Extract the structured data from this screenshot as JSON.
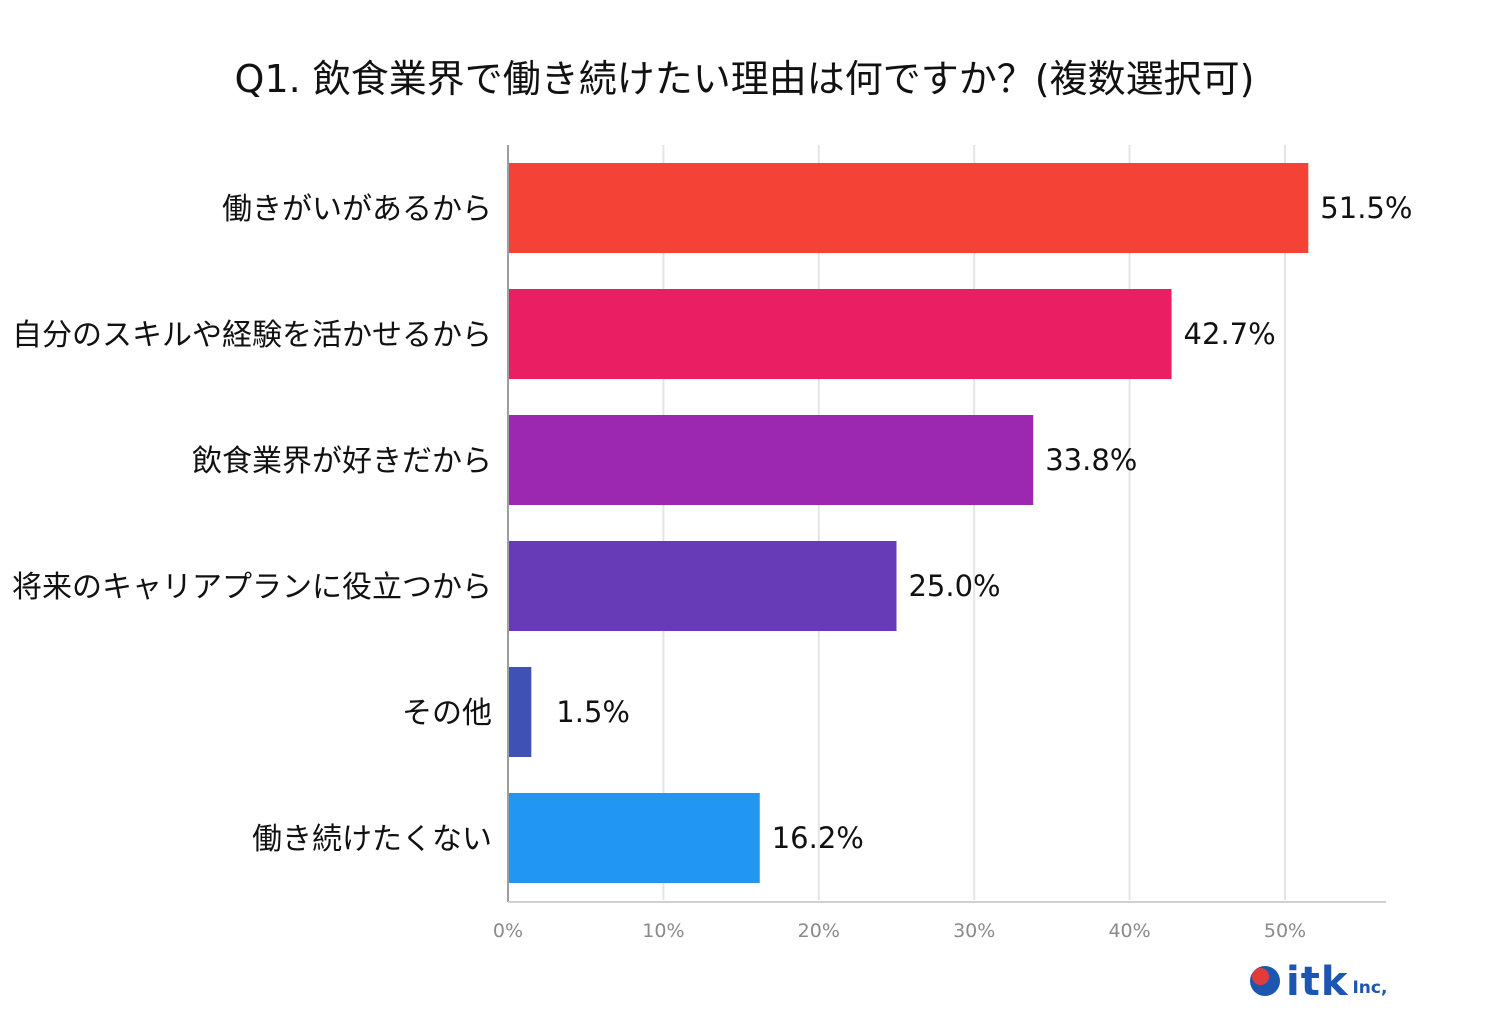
{
  "chart_data": {
    "type": "bar",
    "orientation": "horizontal",
    "title": "Q1. 飲食業界で働き続けたい理由は何ですか？(複数選択可)",
    "categories": [
      "働きがいがあるから",
      "自分のスキルや経験を活かせるから",
      "飲食業界が好きだから",
      "将来のキャリアプランに役立つから",
      "その他",
      "働き続けたくない"
    ],
    "values": [
      51.5,
      42.7,
      33.8,
      25.0,
      1.5,
      16.2
    ],
    "value_labels": [
      "51.5%",
      "42.7%",
      "33.8%",
      "25.0%",
      "1.5%",
      "16.2%"
    ],
    "colors": [
      "#f44336",
      "#e91e63",
      "#9c27b0",
      "#673ab7",
      "#3f51b5",
      "#2196f3"
    ],
    "xticks": [
      0,
      10,
      20,
      30,
      40,
      50
    ],
    "xtick_labels": [
      "0%",
      "10%",
      "20%",
      "30%",
      "40%",
      "50%"
    ],
    "xlim": [
      0,
      56.5
    ],
    "xlabel": "",
    "ylabel": "",
    "grid": true,
    "legend": "none"
  },
  "logo": {
    "text": "itk",
    "suffix": "Inc,"
  }
}
